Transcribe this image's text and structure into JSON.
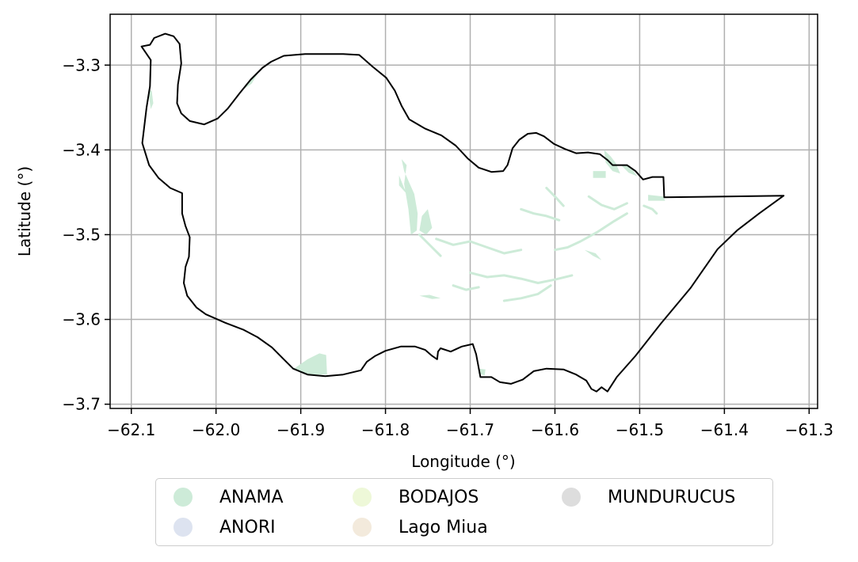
{
  "chart_data": {
    "type": "map",
    "xlabel": "Longitude (°)",
    "ylabel": "Latitude (°)",
    "xlim": [
      -62.125,
      -61.29
    ],
    "ylim": [
      -3.705,
      -3.24
    ],
    "xticks": [
      -62.1,
      -62.0,
      -61.9,
      -61.8,
      -61.7,
      -61.6,
      -61.5,
      -61.4,
      -61.3
    ],
    "yticks": [
      -3.3,
      -3.4,
      -3.5,
      -3.6,
      -3.7
    ],
    "xtick_labels": [
      "−62.1",
      "−62.0",
      "−61.9",
      "−61.8",
      "−61.7",
      "−61.6",
      "−61.5",
      "−61.4",
      "−61.3"
    ],
    "ytick_labels": [
      "−3.3",
      "−3.4",
      "−3.5",
      "−3.6",
      "−3.7"
    ],
    "grid": true,
    "legend_placement": "bottom-center",
    "legend": [
      {
        "name": "ANAMA",
        "color": "#cdebd8"
      },
      {
        "name": "ANORI",
        "color": "#dde3f0"
      },
      {
        "name": "BODAJOS",
        "color": "#eef8d8"
      },
      {
        "name": "Lago Miua",
        "color": "#f3eadc"
      },
      {
        "name": "MUNDURUCUS",
        "color": "#dddddd"
      }
    ],
    "boundary": [
      [
        -62.088,
        -3.278
      ],
      [
        -62.078,
        -3.276
      ],
      [
        -62.073,
        -3.268
      ],
      [
        -62.06,
        -3.263
      ],
      [
        -62.05,
        -3.266
      ],
      [
        -62.043,
        -3.275
      ],
      [
        -62.041,
        -3.298
      ],
      [
        -62.045,
        -3.323
      ],
      [
        -62.046,
        -3.345
      ],
      [
        -62.041,
        -3.357
      ],
      [
        -62.031,
        -3.366
      ],
      [
        -62.014,
        -3.37
      ],
      [
        -61.998,
        -3.363
      ],
      [
        -61.986,
        -3.351
      ],
      [
        -61.972,
        -3.333
      ],
      [
        -61.959,
        -3.317
      ],
      [
        -61.945,
        -3.303
      ],
      [
        -61.935,
        -3.296
      ],
      [
        -61.92,
        -3.289
      ],
      [
        -61.895,
        -3.287
      ],
      [
        -61.87,
        -3.287
      ],
      [
        -61.85,
        -3.287
      ],
      [
        -61.831,
        -3.288
      ],
      [
        -61.815,
        -3.302
      ],
      [
        -61.799,
        -3.315
      ],
      [
        -61.789,
        -3.33
      ],
      [
        -61.781,
        -3.348
      ],
      [
        -61.772,
        -3.364
      ],
      [
        -61.753,
        -3.375
      ],
      [
        -61.734,
        -3.383
      ],
      [
        -61.717,
        -3.395
      ],
      [
        -61.703,
        -3.41
      ],
      [
        -61.69,
        -3.421
      ],
      [
        -61.675,
        -3.426
      ],
      [
        -61.661,
        -3.425
      ],
      [
        -61.656,
        -3.418
      ],
      [
        -61.65,
        -3.398
      ],
      [
        -61.642,
        -3.388
      ],
      [
        -61.632,
        -3.381
      ],
      [
        -61.622,
        -3.38
      ],
      [
        -61.613,
        -3.384
      ],
      [
        -61.601,
        -3.393
      ],
      [
        -61.588,
        -3.399
      ],
      [
        -61.575,
        -3.404
      ],
      [
        -61.561,
        -3.403
      ],
      [
        -61.547,
        -3.405
      ],
      [
        -61.538,
        -3.412
      ],
      [
        -61.532,
        -3.418
      ],
      [
        -61.515,
        -3.418
      ],
      [
        -61.505,
        -3.425
      ],
      [
        -61.496,
        -3.435
      ],
      [
        -61.485,
        -3.432
      ],
      [
        -61.472,
        -3.432
      ],
      [
        -61.471,
        -3.456
      ],
      [
        -61.33,
        -3.454
      ],
      [
        -61.359,
        -3.475
      ],
      [
        -61.385,
        -3.495
      ],
      [
        -61.408,
        -3.517
      ],
      [
        -61.44,
        -3.563
      ],
      [
        -61.475,
        -3.605
      ],
      [
        -61.505,
        -3.643
      ],
      [
        -61.527,
        -3.668
      ],
      [
        -61.538,
        -3.685
      ],
      [
        -61.545,
        -3.68
      ],
      [
        -61.551,
        -3.685
      ],
      [
        -61.557,
        -3.682
      ],
      [
        -61.563,
        -3.672
      ],
      [
        -61.575,
        -3.665
      ],
      [
        -61.59,
        -3.659
      ],
      [
        -61.61,
        -3.658
      ],
      [
        -61.625,
        -3.661
      ],
      [
        -61.638,
        -3.671
      ],
      [
        -61.652,
        -3.676
      ],
      [
        -61.665,
        -3.674
      ],
      [
        -61.675,
        -3.668
      ],
      [
        -61.688,
        -3.668
      ],
      [
        -61.693,
        -3.641
      ],
      [
        -61.697,
        -3.629
      ],
      [
        -61.71,
        -3.632
      ],
      [
        -61.723,
        -3.638
      ],
      [
        -61.735,
        -3.634
      ],
      [
        -61.738,
        -3.638
      ],
      [
        -61.739,
        -3.647
      ],
      [
        -61.745,
        -3.643
      ],
      [
        -61.753,
        -3.636
      ],
      [
        -61.765,
        -3.632
      ],
      [
        -61.782,
        -3.632
      ],
      [
        -61.8,
        -3.637
      ],
      [
        -61.812,
        -3.643
      ],
      [
        -61.822,
        -3.65
      ],
      [
        -61.829,
        -3.66
      ],
      [
        -61.85,
        -3.665
      ],
      [
        -61.871,
        -3.667
      ],
      [
        -61.892,
        -3.665
      ],
      [
        -61.909,
        -3.658
      ],
      [
        -61.92,
        -3.647
      ],
      [
        -61.934,
        -3.633
      ],
      [
        -61.951,
        -3.621
      ],
      [
        -61.968,
        -3.612
      ],
      [
        -61.989,
        -3.604
      ],
      [
        -62.012,
        -3.594
      ],
      [
        -62.023,
        -3.586
      ],
      [
        -62.034,
        -3.572
      ],
      [
        -62.038,
        -3.557
      ],
      [
        -62.036,
        -3.538
      ],
      [
        -62.032,
        -3.526
      ],
      [
        -62.031,
        -3.503
      ],
      [
        -62.036,
        -3.49
      ],
      [
        -62.04,
        -3.475
      ],
      [
        -62.04,
        -3.451
      ],
      [
        -62.054,
        -3.445
      ],
      [
        -62.068,
        -3.433
      ],
      [
        -62.079,
        -3.418
      ],
      [
        -62.087,
        -3.392
      ],
      [
        -62.082,
        -3.35
      ],
      [
        -62.078,
        -3.325
      ],
      [
        -62.077,
        -3.294
      ],
      [
        -62.088,
        -3.278
      ]
    ],
    "patches": [
      {
        "group": "ANAMA",
        "points": [
          [
            -61.908,
            -3.658
          ],
          [
            -61.892,
            -3.647
          ],
          [
            -61.878,
            -3.64
          ],
          [
            -61.87,
            -3.642
          ],
          [
            -61.869,
            -3.665
          ],
          [
            -61.892,
            -3.665
          ]
        ]
      },
      {
        "group": "ANAMA",
        "points": [
          [
            -61.781,
            -3.411
          ],
          [
            -61.775,
            -3.418
          ],
          [
            -61.778,
            -3.44
          ],
          [
            -61.773,
            -3.47
          ],
          [
            -61.77,
            -3.5
          ],
          [
            -61.763,
            -3.495
          ],
          [
            -61.762,
            -3.475
          ],
          [
            -61.766,
            -3.452
          ],
          [
            -61.778,
            -3.425
          ]
        ]
      },
      {
        "group": "ANAMA",
        "points": [
          [
            -61.784,
            -3.43
          ],
          [
            -61.778,
            -3.445
          ],
          [
            -61.772,
            -3.455
          ],
          [
            -61.784,
            -3.442
          ]
        ]
      },
      {
        "group": "ANAMA",
        "points": [
          [
            -61.757,
            -3.478
          ],
          [
            -61.75,
            -3.47
          ],
          [
            -61.745,
            -3.492
          ],
          [
            -61.752,
            -3.5
          ],
          [
            -61.76,
            -3.495
          ]
        ]
      },
      {
        "group": "ANAMA",
        "points": [
          [
            -61.542,
            -3.4
          ],
          [
            -61.534,
            -3.408
          ],
          [
            -61.528,
            -3.416
          ],
          [
            -61.523,
            -3.428
          ],
          [
            -61.532,
            -3.425
          ],
          [
            -61.54,
            -3.415
          ]
        ]
      },
      {
        "group": "ANAMA",
        "points": [
          [
            -61.522,
            -3.418
          ],
          [
            -61.515,
            -3.418
          ],
          [
            -61.508,
            -3.424
          ],
          [
            -61.503,
            -3.431
          ],
          [
            -61.513,
            -3.427
          ]
        ]
      },
      {
        "group": "ANAMA",
        "points": [
          [
            -61.555,
            -3.425
          ],
          [
            -61.54,
            -3.425
          ],
          [
            -61.54,
            -3.433
          ],
          [
            -61.555,
            -3.433
          ]
        ]
      },
      {
        "group": "ANAMA",
        "points": [
          [
            -61.49,
            -3.453
          ],
          [
            -61.472,
            -3.455
          ],
          [
            -61.47,
            -3.46
          ],
          [
            -61.49,
            -3.46
          ]
        ]
      },
      {
        "group": "ANAMA",
        "points": [
          [
            -61.565,
            -3.518
          ],
          [
            -61.555,
            -3.525
          ],
          [
            -61.545,
            -3.53
          ],
          [
            -61.552,
            -3.522
          ]
        ]
      },
      {
        "group": "ANAMA",
        "points": [
          [
            -61.76,
            -3.572
          ],
          [
            -61.745,
            -3.576
          ],
          [
            -61.735,
            -3.575
          ],
          [
            -61.748,
            -3.571
          ]
        ]
      },
      {
        "group": "ANAMA",
        "points": [
          [
            -61.69,
            -3.658
          ],
          [
            -61.682,
            -3.659
          ],
          [
            -61.683,
            -3.666
          ],
          [
            -61.69,
            -3.664
          ]
        ]
      },
      {
        "group": "ANAMA",
        "points": [
          [
            -61.948,
            -3.305
          ],
          [
            -61.96,
            -3.318
          ],
          [
            -61.97,
            -3.33
          ],
          [
            -61.958,
            -3.322
          ]
        ]
      },
      {
        "group": "ANAMA",
        "points": [
          [
            -62.08,
            -3.33
          ],
          [
            -62.077,
            -3.352
          ],
          [
            -62.074,
            -3.345
          ],
          [
            -62.076,
            -3.33
          ]
        ]
      }
    ],
    "channels": [
      [
        [
          -61.74,
          -3.505
        ],
        [
          -61.72,
          -3.512
        ],
        [
          -61.7,
          -3.508
        ],
        [
          -61.68,
          -3.515
        ],
        [
          -61.66,
          -3.522
        ],
        [
          -61.64,
          -3.518
        ]
      ],
      [
        [
          -61.7,
          -3.545
        ],
        [
          -61.68,
          -3.55
        ],
        [
          -61.66,
          -3.548
        ],
        [
          -61.64,
          -3.552
        ],
        [
          -61.62,
          -3.557
        ],
        [
          -61.6,
          -3.553
        ],
        [
          -61.58,
          -3.548
        ]
      ],
      [
        [
          -61.66,
          -3.578
        ],
        [
          -61.64,
          -3.575
        ],
        [
          -61.62,
          -3.57
        ],
        [
          -61.605,
          -3.56
        ]
      ],
      [
        [
          -61.6,
          -3.518
        ],
        [
          -61.585,
          -3.515
        ],
        [
          -61.57,
          -3.508
        ],
        [
          -61.55,
          -3.497
        ],
        [
          -61.53,
          -3.484
        ],
        [
          -61.515,
          -3.475
        ]
      ],
      [
        [
          -61.64,
          -3.47
        ],
        [
          -61.625,
          -3.475
        ],
        [
          -61.61,
          -3.478
        ],
        [
          -61.595,
          -3.483
        ]
      ],
      [
        [
          -61.56,
          -3.455
        ],
        [
          -61.545,
          -3.465
        ],
        [
          -61.53,
          -3.47
        ],
        [
          -61.515,
          -3.463
        ]
      ],
      [
        [
          -61.76,
          -3.5
        ],
        [
          -61.745,
          -3.515
        ],
        [
          -61.735,
          -3.525
        ]
      ],
      [
        [
          -61.72,
          -3.56
        ],
        [
          -61.705,
          -3.565
        ],
        [
          -61.69,
          -3.562
        ]
      ],
      [
        [
          -61.61,
          -3.445
        ],
        [
          -61.6,
          -3.455
        ],
        [
          -61.59,
          -3.466
        ]
      ],
      [
        [
          -61.495,
          -3.466
        ],
        [
          -61.485,
          -3.47
        ],
        [
          -61.48,
          -3.475
        ]
      ]
    ]
  }
}
